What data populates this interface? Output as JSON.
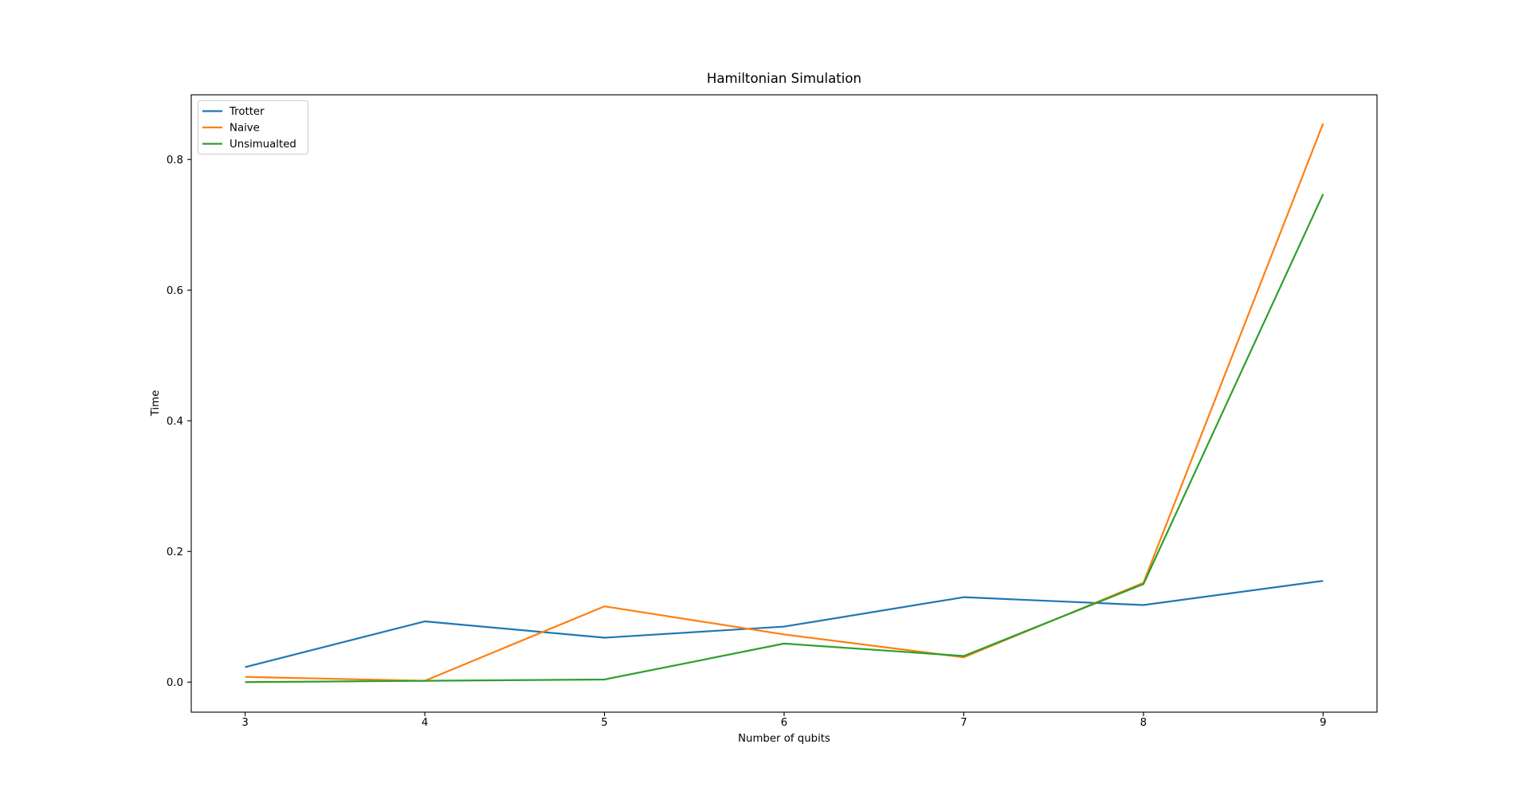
{
  "chart_data": {
    "type": "line",
    "title": "Hamiltonian Simulation",
    "xlabel": "Number of qubits",
    "ylabel": "Time",
    "grid": false,
    "legend_position": "upper-left",
    "x": [
      3,
      4,
      5,
      6,
      7,
      8,
      9
    ],
    "xticks": [
      3,
      4,
      5,
      6,
      7,
      8,
      9
    ],
    "xtick_labels": [
      "3",
      "4",
      "5",
      "6",
      "7",
      "8",
      "9"
    ],
    "yticks": [
      0.0,
      0.2,
      0.4,
      0.6,
      0.8
    ],
    "ytick_labels": [
      "0.0",
      "0.2",
      "0.4",
      "0.6",
      "0.8"
    ],
    "xlim": [
      2.7,
      9.3
    ],
    "ylim": [
      -0.046,
      0.899
    ],
    "series": [
      {
        "name": "Trotter",
        "color": "#1f77b4",
        "values": [
          0.023,
          0.093,
          0.068,
          0.085,
          0.13,
          0.118,
          0.155
        ]
      },
      {
        "name": "Naive",
        "color": "#ff7f0e",
        "values": [
          0.008,
          0.002,
          0.116,
          0.073,
          0.038,
          0.152,
          0.855
        ]
      },
      {
        "name": "Unsimualted",
        "color": "#2ca02c",
        "values": [
          0.0,
          0.002,
          0.004,
          0.059,
          0.04,
          0.15,
          0.747
        ]
      }
    ]
  }
}
